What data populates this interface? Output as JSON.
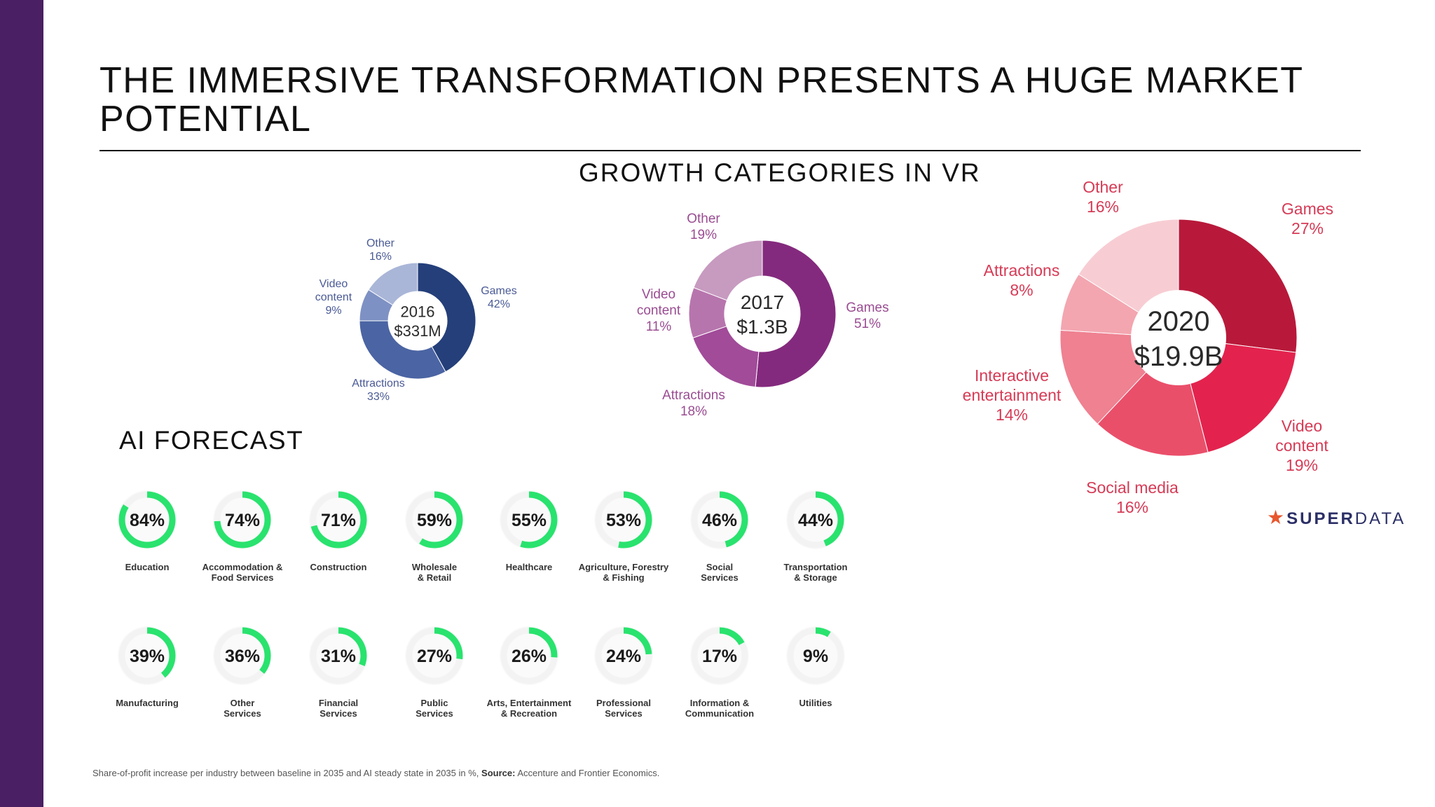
{
  "title": "THE IMMERSIVE TRANSFORMATION PRESENTS A HUGE MARKET POTENTIAL",
  "vr_heading": "GROWTH CATEGORIES IN VR",
  "ai_heading": "AI FORECAST",
  "logo": {
    "star": "★",
    "part1": "SUPER",
    "part2": "DATA"
  },
  "footnote": {
    "text": "Share-of-profit increase per industry between baseline in 2035 and AI steady state in 2035 in %,",
    "source_label": "Source:",
    "source": "Accenture and Frontier Economics."
  },
  "chart_data": [
    {
      "type": "pie",
      "center_line1": "2016",
      "center_line2": "$331M",
      "slices": [
        {
          "label": "Games",
          "value": 42,
          "value_label": "42%",
          "color": "#243f7a"
        },
        {
          "label": "Attractions",
          "value": 33,
          "value_label": "33%",
          "color": "#4b64a3"
        },
        {
          "label": "Video content",
          "value": 9,
          "value_label": "9%",
          "color": "#7e91c4"
        },
        {
          "label": "Other",
          "value": 16,
          "value_label": "16%",
          "color": "#a9b6d8"
        }
      ],
      "label_color": "#4a5a95"
    },
    {
      "type": "pie",
      "center_line1": "2017",
      "center_line2": "$1.3B",
      "slices": [
        {
          "label": "Games",
          "value": 51,
          "value_label": "51%",
          "color": "#842a7e"
        },
        {
          "label": "Attractions",
          "value": 18,
          "value_label": "18%",
          "color": "#a14b99"
        },
        {
          "label": "Video content",
          "value": 11,
          "value_label": "11%",
          "color": "#b775ad"
        },
        {
          "label": "Other",
          "value": 19,
          "value_label": "19%",
          "color": "#c79ac0"
        }
      ],
      "label_color": "#9a4c92"
    },
    {
      "type": "pie",
      "center_line1": "2020",
      "center_line2": "$19.9B",
      "slices": [
        {
          "label": "Games",
          "value": 27,
          "value_label": "27%",
          "color": "#b8193a"
        },
        {
          "label": "Video content",
          "value": 19,
          "value_label": "19%",
          "color": "#e3234e"
        },
        {
          "label": "Social media",
          "value": 16,
          "value_label": "16%",
          "color": "#ea4f6a"
        },
        {
          "label": "Interactive entertainment",
          "value": 14,
          "value_label": "14%",
          "color": "#ef8191"
        },
        {
          "label": "Attractions",
          "value": 8,
          "value_label": "8%",
          "color": "#f3a6b0"
        },
        {
          "label": "Other",
          "value": 16,
          "value_label": "16%",
          "color": "#f7cdd3"
        }
      ],
      "label_color": "#d63b56"
    },
    {
      "type": "pie",
      "subtype": "progress-rings",
      "ring_color": "#29e36e",
      "track_color": "#f3f3f3",
      "items": [
        {
          "category": "Education",
          "value": 84,
          "value_label": "84%"
        },
        {
          "category": "Accommodation & Food Services",
          "value": 74,
          "value_label": "74%"
        },
        {
          "category": "Construction",
          "value": 71,
          "value_label": "71%"
        },
        {
          "category": "Wholesale & Retail",
          "value": 59,
          "value_label": "59%"
        },
        {
          "category": "Healthcare",
          "value": 55,
          "value_label": "55%"
        },
        {
          "category": "Agriculture, Forestry & Fishing",
          "value": 53,
          "value_label": "53%"
        },
        {
          "category": "Social Services",
          "value": 46,
          "value_label": "46%"
        },
        {
          "category": "Transportation & Storage",
          "value": 44,
          "value_label": "44%"
        },
        {
          "category": "Manufacturing",
          "value": 39,
          "value_label": "39%"
        },
        {
          "category": "Other Services",
          "value": 36,
          "value_label": "36%"
        },
        {
          "category": "Financial Services",
          "value": 31,
          "value_label": "31%"
        },
        {
          "category": "Public Services",
          "value": 27,
          "value_label": "27%"
        },
        {
          "category": "Arts, Entertainment & Recreation",
          "value": 26,
          "value_label": "26%"
        },
        {
          "category": "Professional Services",
          "value": 24,
          "value_label": "24%"
        },
        {
          "category": "Information & Communication",
          "value": 17,
          "value_label": "17%"
        },
        {
          "category": "Utilities",
          "value": 9,
          "value_label": "9%"
        }
      ]
    }
  ]
}
